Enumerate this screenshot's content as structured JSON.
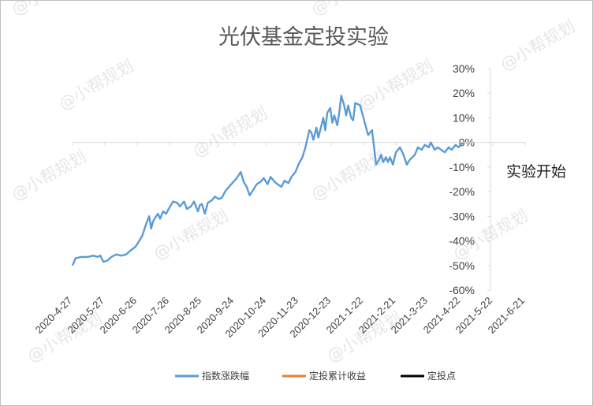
{
  "watermark": "@小帮规划",
  "chart_data": {
    "type": "line",
    "title": "光伏基金定投实验",
    "xlabel": "",
    "ylabel": "",
    "ylim": [
      -0.6,
      0.3
    ],
    "yticks": [
      0.3,
      0.2,
      0.1,
      0.0,
      -0.1,
      -0.2,
      -0.3,
      -0.4,
      -0.5,
      -0.6
    ],
    "ytick_labels": [
      "30%",
      "20%",
      "10%",
      "0%",
      "-10%",
      "-20%",
      "-30%",
      "-40%",
      "-50%",
      "-60%"
    ],
    "xlim": [
      "2020-04-27",
      "2021-06-21"
    ],
    "xtick_labels": [
      "2020-4-27",
      "2020-5-27",
      "2020-6-26",
      "2020-7-26",
      "2020-8-25",
      "2020-9-24",
      "2020-10-24",
      "2020-11-23",
      "2020-12-23",
      "2021-1-22",
      "2021-2-21",
      "2021-3-23",
      "2021-4-22",
      "2021-5-22",
      "2021-6-21"
    ],
    "grid": false,
    "legend_position": "bottom",
    "annotation": "实验开始",
    "series": [
      {
        "name": "指数涨跌幅",
        "color": "#5b9bd5",
        "x": [
          "2020-04-27",
          "2020-04-30",
          "2020-05-06",
          "2020-05-12",
          "2020-05-18",
          "2020-05-22",
          "2020-05-25",
          "2020-05-28",
          "2020-06-01",
          "2020-06-05",
          "2020-06-10",
          "2020-06-15",
          "2020-06-20",
          "2020-06-24",
          "2020-06-29",
          "2020-07-03",
          "2020-07-06",
          "2020-07-08",
          "2020-07-10",
          "2020-07-13",
          "2020-07-15",
          "2020-07-17",
          "2020-07-20",
          "2020-07-22",
          "2020-07-24",
          "2020-07-27",
          "2020-07-30",
          "2020-08-03",
          "2020-08-06",
          "2020-08-10",
          "2020-08-13",
          "2020-08-17",
          "2020-08-20",
          "2020-08-24",
          "2020-08-27",
          "2020-08-31",
          "2020-09-02",
          "2020-09-04",
          "2020-09-07",
          "2020-09-10",
          "2020-09-14",
          "2020-09-17",
          "2020-09-21",
          "2020-09-24",
          "2020-09-28",
          "2020-10-09",
          "2020-10-13",
          "2020-10-16",
          "2020-10-19",
          "2020-10-22",
          "2020-10-26",
          "2020-10-29",
          "2020-11-02",
          "2020-11-05",
          "2020-11-09",
          "2020-11-12",
          "2020-11-16",
          "2020-11-19",
          "2020-11-23",
          "2020-11-26",
          "2020-11-30",
          "2020-12-03",
          "2020-12-07",
          "2020-12-10",
          "2020-12-14",
          "2020-12-17",
          "2020-12-21",
          "2020-12-23",
          "2020-12-25",
          "2020-12-28",
          "2020-12-30",
          "2021-01-04",
          "2021-01-06",
          "2021-01-08",
          "2021-01-11",
          "2021-01-13",
          "2021-01-15",
          "2021-01-18",
          "2021-01-20",
          "2021-01-22",
          "2021-01-25",
          "2021-01-27",
          "2021-01-29",
          "2021-02-01",
          "2021-02-03",
          "2021-02-05",
          "2021-02-08",
          "2021-02-10",
          "2021-02-18",
          "2021-02-22",
          "2021-02-24",
          "2021-02-26",
          "2021-03-01",
          "2021-03-03",
          "2021-03-05",
          "2021-03-08",
          "2021-03-10",
          "2021-03-12",
          "2021-03-15",
          "2021-03-18",
          "2021-03-22",
          "2021-03-25",
          "2021-03-29",
          "2021-04-01",
          "2021-04-06",
          "2021-04-09",
          "2021-04-13",
          "2021-04-16",
          "2021-04-20",
          "2021-04-22",
          "2021-04-26",
          "2021-04-29",
          "2021-05-06",
          "2021-05-10",
          "2021-05-13",
          "2021-05-17",
          "2021-05-20",
          "2021-05-24"
        ],
        "values": [
          -0.5,
          -0.47,
          -0.465,
          -0.465,
          -0.46,
          -0.465,
          -0.46,
          -0.485,
          -0.48,
          -0.465,
          -0.455,
          -0.46,
          -0.455,
          -0.44,
          -0.425,
          -0.4,
          -0.38,
          -0.355,
          -0.33,
          -0.3,
          -0.35,
          -0.32,
          -0.3,
          -0.29,
          -0.31,
          -0.28,
          -0.29,
          -0.26,
          -0.24,
          -0.245,
          -0.26,
          -0.24,
          -0.27,
          -0.26,
          -0.24,
          -0.28,
          -0.255,
          -0.25,
          -0.29,
          -0.245,
          -0.235,
          -0.22,
          -0.23,
          -0.225,
          -0.195,
          -0.145,
          -0.12,
          -0.16,
          -0.18,
          -0.215,
          -0.19,
          -0.17,
          -0.16,
          -0.145,
          -0.17,
          -0.14,
          -0.16,
          -0.17,
          -0.18,
          -0.155,
          -0.165,
          -0.14,
          -0.12,
          -0.09,
          -0.06,
          -0.02,
          0.05,
          0.04,
          0.01,
          0.06,
          0.02,
          0.1,
          0.05,
          0.12,
          0.14,
          0.08,
          0.11,
          0.07,
          0.12,
          0.19,
          0.15,
          0.11,
          0.15,
          0.1,
          0.09,
          0.16,
          0.155,
          0.15,
          0.03,
          0.05,
          -0.02,
          -0.09,
          -0.07,
          -0.05,
          -0.08,
          -0.06,
          -0.08,
          -0.06,
          -0.09,
          -0.04,
          -0.02,
          -0.045,
          -0.09,
          -0.07,
          -0.05,
          -0.02,
          -0.03,
          -0.01,
          -0.02,
          0.0,
          -0.03,
          -0.02,
          -0.04,
          -0.02,
          -0.03,
          -0.01,
          -0.02,
          0.0
        ]
      },
      {
        "name": "定投累计收益",
        "color": "#ed7d31",
        "x": [],
        "values": []
      },
      {
        "name": "定投点",
        "color": "#000000",
        "x": [],
        "values": []
      }
    ]
  }
}
